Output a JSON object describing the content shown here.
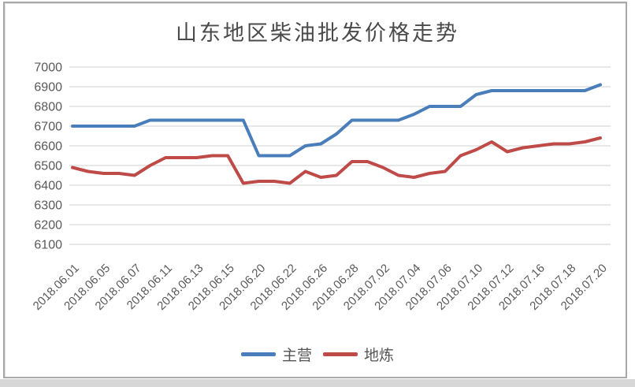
{
  "chart_data": {
    "type": "line",
    "title": "山东地区柴油批发价格走势",
    "xlabel": "",
    "ylabel": "",
    "ylim": [
      6100,
      7000
    ],
    "y_ticks": [
      6100,
      6200,
      6300,
      6400,
      6500,
      6600,
      6700,
      6800,
      6900,
      7000
    ],
    "grid": true,
    "legend_position": "bottom",
    "x_tick_labels": [
      "2018.06.01",
      "2018.06.05",
      "2018.06.07",
      "2018.06.11",
      "2018.06.13",
      "2018.06.15",
      "2018.06.20",
      "2018.06.22",
      "2018.06.26",
      "2018.06.28",
      "2018.07.02",
      "2018.07.04",
      "2018.07.06",
      "2018.07.10",
      "2018.07.12",
      "2018.07.16",
      "2018.07.18",
      "2018.07.20"
    ],
    "points_per_label": 2,
    "series": [
      {
        "name": "主营",
        "color": "#4a7ebb",
        "values": [
          6700,
          6700,
          6700,
          6700,
          6700,
          6730,
          6730,
          6730,
          6730,
          6730,
          6730,
          6730,
          6550,
          6550,
          6550,
          6600,
          6610,
          6660,
          6730,
          6730,
          6730,
          6730,
          6760,
          6800,
          6800,
          6800,
          6860,
          6880,
          6880,
          6880,
          6880,
          6880,
          6880,
          6880,
          6910
        ]
      },
      {
        "name": "地炼",
        "color": "#bf4b48",
        "values": [
          6490,
          6470,
          6460,
          6460,
          6450,
          6500,
          6540,
          6540,
          6540,
          6550,
          6550,
          6410,
          6420,
          6420,
          6410,
          6470,
          6440,
          6450,
          6520,
          6520,
          6490,
          6450,
          6440,
          6460,
          6470,
          6550,
          6580,
          6620,
          6570,
          6590,
          6600,
          6610,
          6610,
          6620,
          6640
        ]
      }
    ]
  },
  "colors": {
    "axis_text": "#595959",
    "gridline": "#d9d9d9",
    "frame_border": "#a9a9a9",
    "title_text": "#4a4a4a"
  }
}
